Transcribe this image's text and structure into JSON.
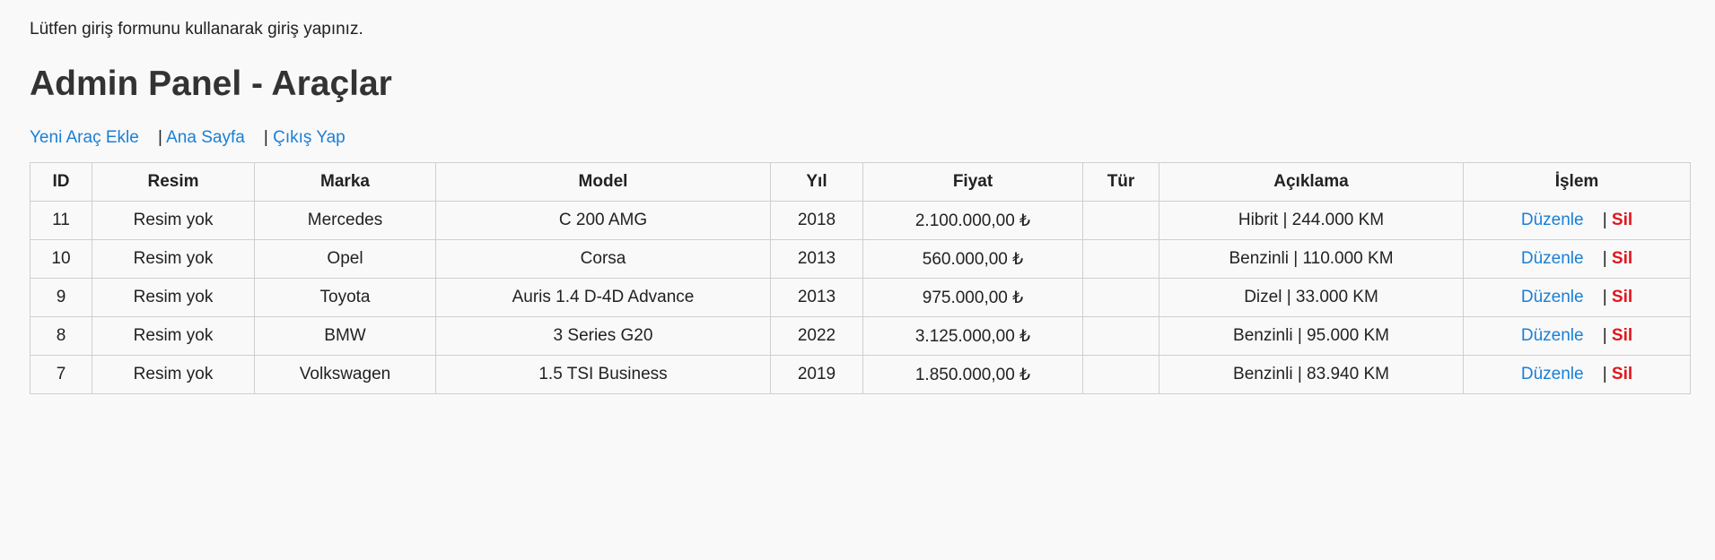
{
  "notice": "Lütfen giriş formunu kullanarak giriş yapınız.",
  "title": "Admin Panel - Araçlar",
  "nav": {
    "add_vehicle": "Yeni Araç Ekle",
    "home": "Ana Sayfa",
    "logout": "Çıkış Yap",
    "separator": "|"
  },
  "table": {
    "headers": {
      "id": "ID",
      "image": "Resim",
      "brand": "Marka",
      "model": "Model",
      "year": "Yıl",
      "price": "Fiyat",
      "type": "Tür",
      "description": "Açıklama",
      "action": "İşlem"
    },
    "rows": [
      {
        "id": "11",
        "image": "Resim yok",
        "brand": "Mercedes",
        "model": "C 200 AMG",
        "year": "2018",
        "price": "2.100.000,00 ₺",
        "type": "",
        "description": "Hibrit | 244.000 KM",
        "edit": "Düzenle",
        "sep": "|",
        "delete": "Sil"
      },
      {
        "id": "10",
        "image": "Resim yok",
        "brand": "Opel",
        "model": "Corsa",
        "year": "2013",
        "price": "560.000,00 ₺",
        "type": "",
        "description": "Benzinli | 110.000 KM",
        "edit": "Düzenle",
        "sep": "|",
        "delete": "Sil"
      },
      {
        "id": "9",
        "image": "Resim yok",
        "brand": "Toyota",
        "model": "Auris 1.4 D-4D Advance",
        "year": "2013",
        "price": "975.000,00 ₺",
        "type": "",
        "description": "Dizel | 33.000 KM",
        "edit": "Düzenle",
        "sep": "|",
        "delete": "Sil"
      },
      {
        "id": "8",
        "image": "Resim yok",
        "brand": "BMW",
        "model": "3 Series G20",
        "year": "2022",
        "price": "3.125.000,00 ₺",
        "type": "",
        "description": "Benzinli | 95.000 KM",
        "edit": "Düzenle",
        "sep": "|",
        "delete": "Sil"
      },
      {
        "id": "7",
        "image": "Resim yok",
        "brand": "Volkswagen",
        "model": "1.5 TSI Business",
        "year": "2019",
        "price": "1.850.000,00 ₺",
        "type": "",
        "description": "Benzinli | 83.940 KM",
        "edit": "Düzenle",
        "sep": "|",
        "delete": "Sil"
      }
    ]
  },
  "colors": {
    "link": "#1a7fd6",
    "delete": "#e0161d",
    "background": "#f9f9f9",
    "border": "#cfcfcf"
  }
}
